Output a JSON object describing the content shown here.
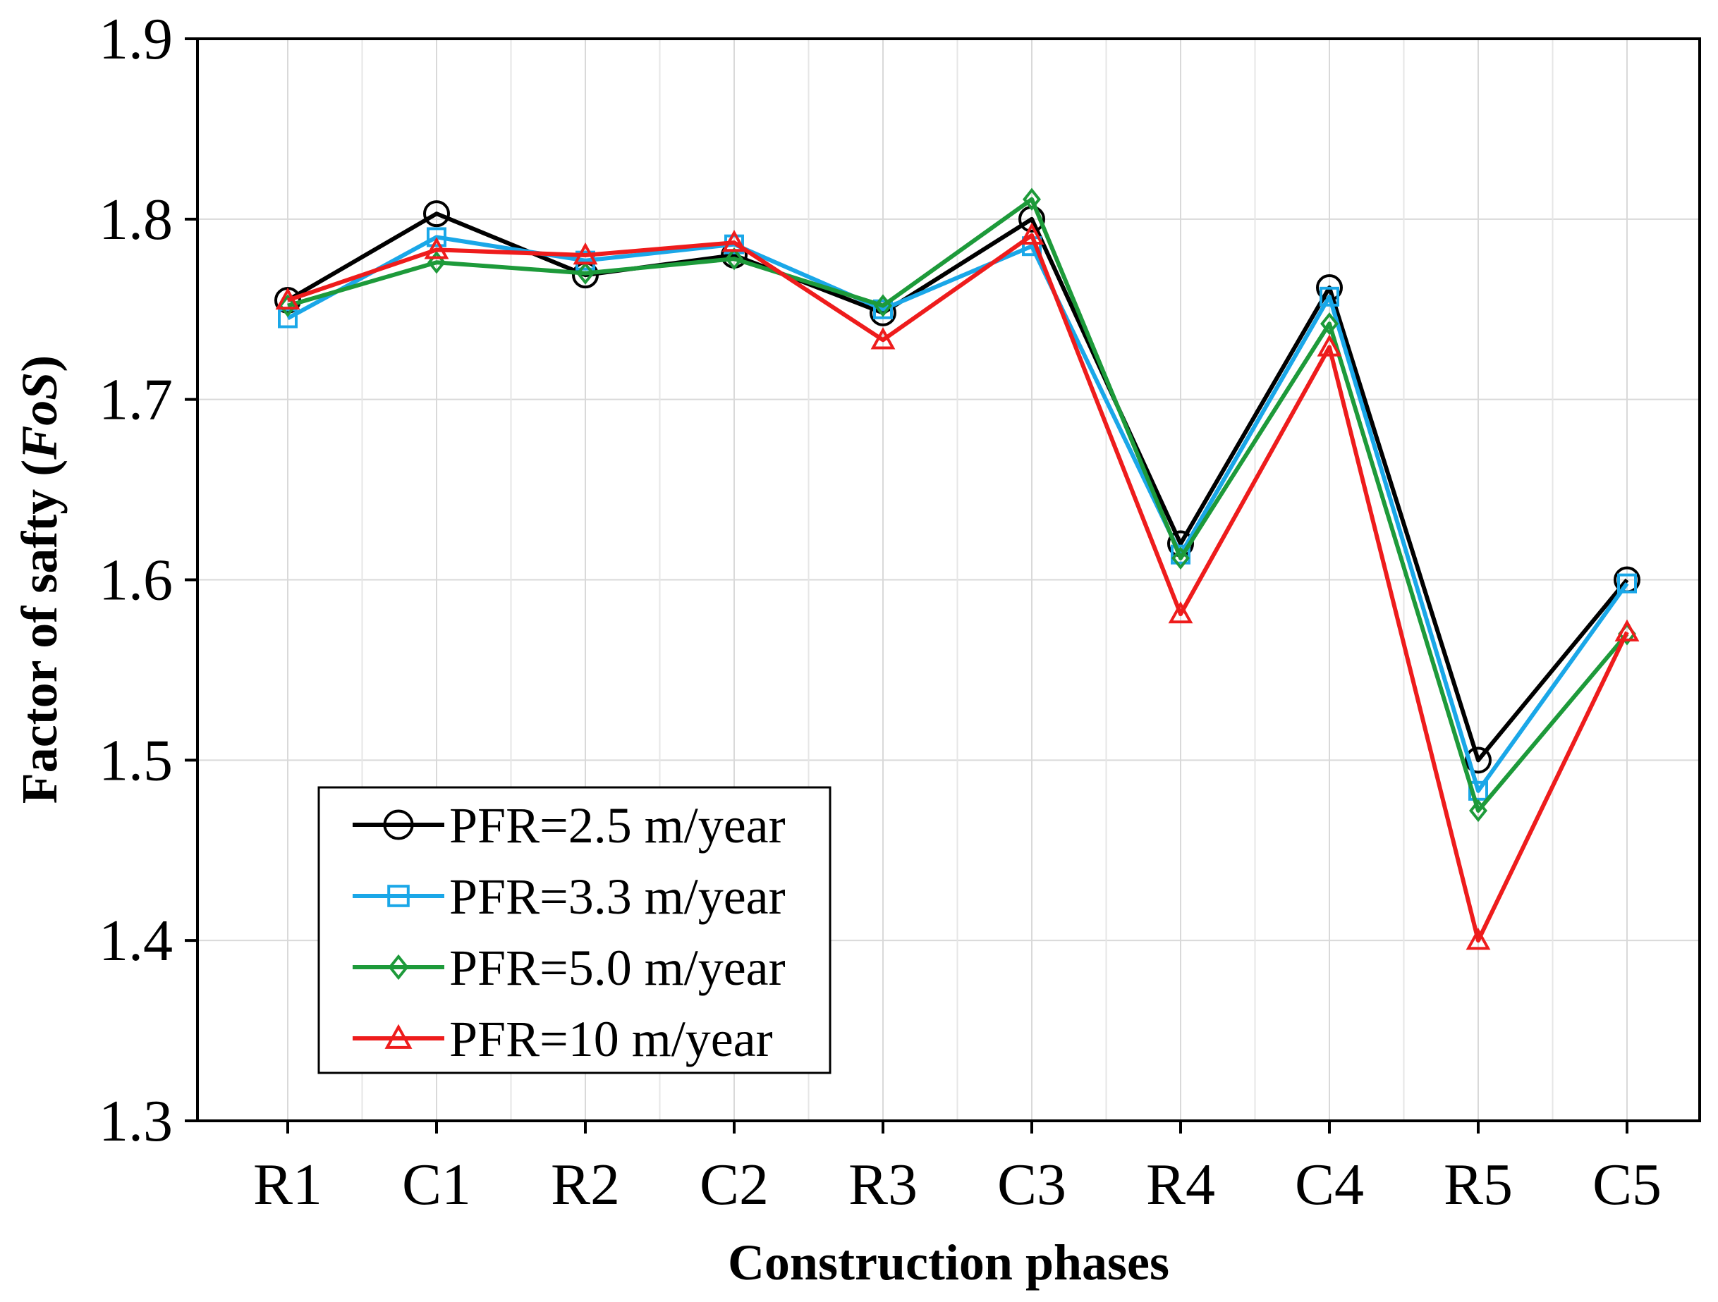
{
  "chart_data": {
    "type": "line",
    "title": "",
    "xlabel": "Construction phases",
    "ylabel_main": "Factor of safty (",
    "ylabel_italic": "FoS",
    "ylabel_end": ")",
    "ylim": [
      1.3,
      1.9
    ],
    "yticks": [
      "1.3",
      "1.4",
      "1.5",
      "1.6",
      "1.7",
      "1.8",
      "1.9"
    ],
    "ytick_values": [
      1.3,
      1.4,
      1.5,
      1.6,
      1.7,
      1.8,
      1.9
    ],
    "grid": true,
    "legend_position": "bottom-left",
    "categories": [
      "R1",
      "C1",
      "R2",
      "C2",
      "R3",
      "C3",
      "R4",
      "C4",
      "R5",
      "C5"
    ],
    "series": [
      {
        "name": "PFR=2.5 m/year",
        "color": "#000000",
        "marker": "circle",
        "values": [
          1.755,
          1.803,
          1.769,
          1.78,
          1.748,
          1.8,
          1.62,
          1.762,
          1.5,
          1.6
        ]
      },
      {
        "name": "PFR=3.3 m/year",
        "color": "#1aa7e8",
        "marker": "square",
        "values": [
          1.745,
          1.79,
          1.777,
          1.786,
          1.75,
          1.785,
          1.614,
          1.757,
          1.483,
          1.598
        ]
      },
      {
        "name": "PFR=5.0 m/year",
        "color": "#1d9a3a",
        "marker": "diamond",
        "values": [
          1.752,
          1.776,
          1.77,
          1.778,
          1.752,
          1.811,
          1.612,
          1.742,
          1.472,
          1.57
        ]
      },
      {
        "name": "PFR=10 m/year",
        "color": "#ee1c1c",
        "marker": "triangle",
        "values": [
          1.755,
          1.783,
          1.78,
          1.787,
          1.733,
          1.791,
          1.581,
          1.729,
          1.4,
          1.571
        ]
      }
    ]
  }
}
